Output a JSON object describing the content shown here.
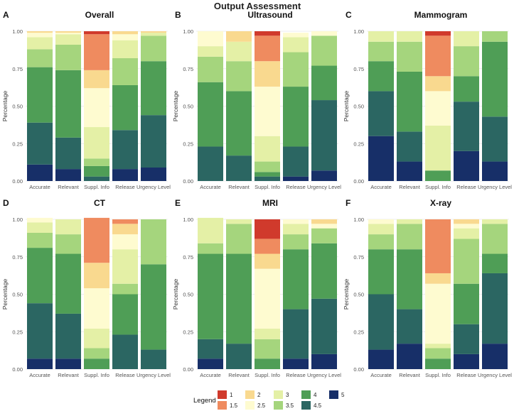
{
  "figure_title": "Output Assessment",
  "legend": {
    "title": "Legend",
    "entries": [
      {
        "label": "1",
        "color": "#d03a2c"
      },
      {
        "label": "1.5",
        "color": "#ef8b5f"
      },
      {
        "label": "2",
        "color": "#f9d98f"
      },
      {
        "label": "2.5",
        "color": "#fefbd0"
      },
      {
        "label": "3",
        "color": "#e4f0a6"
      },
      {
        "label": "3.5",
        "color": "#a5d57d"
      },
      {
        "label": "4",
        "color": "#4f9e56"
      },
      {
        "label": "4.5",
        "color": "#2b6662"
      },
      {
        "label": "5",
        "color": "#172f68"
      }
    ]
  },
  "chart_data": [
    {
      "panel": "A",
      "title": "Overall",
      "type": "stacked-bar",
      "ylabel": "Percentage",
      "ylim": [
        0,
        1
      ],
      "yticks": [
        "0.00",
        "0.25",
        "0.50",
        "0.75",
        "1.00"
      ],
      "categories": [
        "Accurate",
        "Relevant",
        "Suppl. Info",
        "Release",
        "Urgency Level"
      ],
      "stack_order_bottom_to_top": [
        "5",
        "4.5",
        "4",
        "3.5",
        "3",
        "2.5",
        "2",
        "1.5",
        "1"
      ],
      "values": [
        [
          0.11,
          0.28,
          0.37,
          0.12,
          0.08,
          0.03,
          0.01,
          0.0,
          0.0
        ],
        [
          0.08,
          0.21,
          0.45,
          0.17,
          0.07,
          0.01,
          0.01,
          0.0,
          0.0
        ],
        [
          0.0,
          0.03,
          0.07,
          0.05,
          0.21,
          0.26,
          0.12,
          0.24,
          0.02
        ],
        [
          0.08,
          0.26,
          0.3,
          0.18,
          0.12,
          0.04,
          0.02,
          0.0,
          0.0
        ],
        [
          0.09,
          0.35,
          0.36,
          0.17,
          0.02,
          0.0,
          0.01,
          0.0,
          0.0
        ]
      ]
    },
    {
      "panel": "B",
      "title": "Ultrasound",
      "type": "stacked-bar",
      "ylabel": "Percentage",
      "ylim": [
        0,
        1
      ],
      "yticks": [
        "0.00",
        "0.25",
        "0.50",
        "0.75",
        "1.00"
      ],
      "categories": [
        "Accurate",
        "Relevant",
        "Suppl. Info",
        "Release",
        "Urgency Level"
      ],
      "stack_order_bottom_to_top": [
        "5",
        "4.5",
        "4",
        "3.5",
        "3",
        "2.5",
        "2",
        "1.5",
        "1"
      ],
      "values": [
        [
          0.0,
          0.23,
          0.43,
          0.17,
          0.07,
          0.1,
          0.0,
          0.0,
          0.0
        ],
        [
          0.0,
          0.17,
          0.43,
          0.2,
          0.13,
          0.0,
          0.07,
          0.0,
          0.0
        ],
        [
          0.0,
          0.03,
          0.03,
          0.07,
          0.17,
          0.33,
          0.17,
          0.17,
          0.03
        ],
        [
          0.03,
          0.2,
          0.4,
          0.23,
          0.1,
          0.03,
          0.0,
          0.0,
          0.0
        ],
        [
          0.07,
          0.47,
          0.23,
          0.2,
          0.0,
          0.03,
          0.0,
          0.0,
          0.0
        ]
      ]
    },
    {
      "panel": "C",
      "title": "Mammogram",
      "type": "stacked-bar",
      "ylabel": "Percentage",
      "ylim": [
        0,
        1
      ],
      "yticks": [
        "0.00",
        "0.25",
        "0.50",
        "0.75",
        "1.00"
      ],
      "categories": [
        "Accurate",
        "Relevant",
        "Suppl. Info",
        "Release",
        "Urgency Level"
      ],
      "stack_order_bottom_to_top": [
        "5",
        "4.5",
        "4",
        "3.5",
        "3",
        "2.5",
        "2",
        "1.5",
        "1"
      ],
      "values": [
        [
          0.3,
          0.3,
          0.2,
          0.13,
          0.07,
          0.0,
          0.0,
          0.0,
          0.0
        ],
        [
          0.13,
          0.2,
          0.4,
          0.2,
          0.07,
          0.0,
          0.0,
          0.0,
          0.0
        ],
        [
          0.0,
          0.0,
          0.07,
          0.0,
          0.3,
          0.23,
          0.1,
          0.27,
          0.03
        ],
        [
          0.2,
          0.33,
          0.17,
          0.2,
          0.1,
          0.0,
          0.0,
          0.0,
          0.0
        ],
        [
          0.13,
          0.3,
          0.5,
          0.07,
          0.0,
          0.0,
          0.0,
          0.0,
          0.0
        ]
      ]
    },
    {
      "panel": "D",
      "title": "CT",
      "type": "stacked-bar",
      "ylabel": "Percentage",
      "ylim": [
        0,
        1
      ],
      "yticks": [
        "0.00",
        "0.25",
        "0.50",
        "0.75",
        "1.00"
      ],
      "categories": [
        "Accurate",
        "Relevant",
        "Suppl. Info",
        "Release",
        "Urgency Level"
      ],
      "stack_order_bottom_to_top": [
        "5",
        "4.5",
        "4",
        "3.5",
        "3",
        "2.5",
        "2",
        "1.5",
        "1"
      ],
      "values": [
        [
          0.07,
          0.37,
          0.37,
          0.1,
          0.07,
          0.03,
          0.0,
          0.0,
          0.0
        ],
        [
          0.07,
          0.3,
          0.4,
          0.13,
          0.1,
          0.0,
          0.0,
          0.0,
          0.0
        ],
        [
          0.0,
          0.0,
          0.07,
          0.07,
          0.13,
          0.27,
          0.17,
          0.3,
          0.0
        ],
        [
          0.0,
          0.23,
          0.27,
          0.07,
          0.23,
          0.1,
          0.07,
          0.03,
          0.0
        ],
        [
          0.0,
          0.13,
          0.57,
          0.3,
          0.0,
          0.0,
          0.0,
          0.0,
          0.0
        ]
      ]
    },
    {
      "panel": "E",
      "title": "MRI",
      "type": "stacked-bar",
      "ylabel": "Percentage",
      "ylim": [
        0,
        1
      ],
      "yticks": [
        "0.00",
        "0.25",
        "0.50",
        "0.75",
        "1.00"
      ],
      "categories": [
        "Accurate",
        "Relevant",
        "Suppl. Info",
        "Release",
        "Urgency Level"
      ],
      "stack_order_bottom_to_top": [
        "5",
        "4.5",
        "4",
        "3.5",
        "3",
        "2.5",
        "2",
        "1.5",
        "1"
      ],
      "values": [
        [
          0.07,
          0.13,
          0.57,
          0.07,
          0.17,
          0.0,
          0.0,
          0.0,
          0.0
        ],
        [
          0.0,
          0.17,
          0.6,
          0.2,
          0.03,
          0.0,
          0.0,
          0.0,
          0.0
        ],
        [
          0.0,
          0.0,
          0.07,
          0.13,
          0.07,
          0.4,
          0.1,
          0.1,
          0.13
        ],
        [
          0.07,
          0.33,
          0.4,
          0.1,
          0.07,
          0.03,
          0.0,
          0.0,
          0.0
        ],
        [
          0.1,
          0.37,
          0.37,
          0.1,
          0.0,
          0.03,
          0.03,
          0.0,
          0.0
        ]
      ]
    },
    {
      "panel": "F",
      "title": "X-ray",
      "type": "stacked-bar",
      "ylabel": "Percentage",
      "ylim": [
        0,
        1
      ],
      "yticks": [
        "0.00",
        "0.25",
        "0.50",
        "0.75",
        "1.00"
      ],
      "categories": [
        "Accurate",
        "Relevant",
        "Suppl. Info",
        "Release",
        "Urgency Level"
      ],
      "stack_order_bottom_to_top": [
        "5",
        "4.5",
        "4",
        "3.5",
        "3",
        "2.5",
        "2",
        "1.5",
        "1"
      ],
      "values": [
        [
          0.13,
          0.37,
          0.3,
          0.1,
          0.07,
          0.03,
          0.0,
          0.0,
          0.0
        ],
        [
          0.17,
          0.23,
          0.4,
          0.17,
          0.03,
          0.0,
          0.0,
          0.0,
          0.0
        ],
        [
          0.0,
          0.0,
          0.07,
          0.07,
          0.03,
          0.4,
          0.07,
          0.36,
          0.0
        ],
        [
          0.1,
          0.2,
          0.27,
          0.3,
          0.07,
          0.03,
          0.03,
          0.0,
          0.0
        ],
        [
          0.17,
          0.47,
          0.13,
          0.2,
          0.03,
          0.0,
          0.0,
          0.0,
          0.0
        ]
      ]
    }
  ]
}
